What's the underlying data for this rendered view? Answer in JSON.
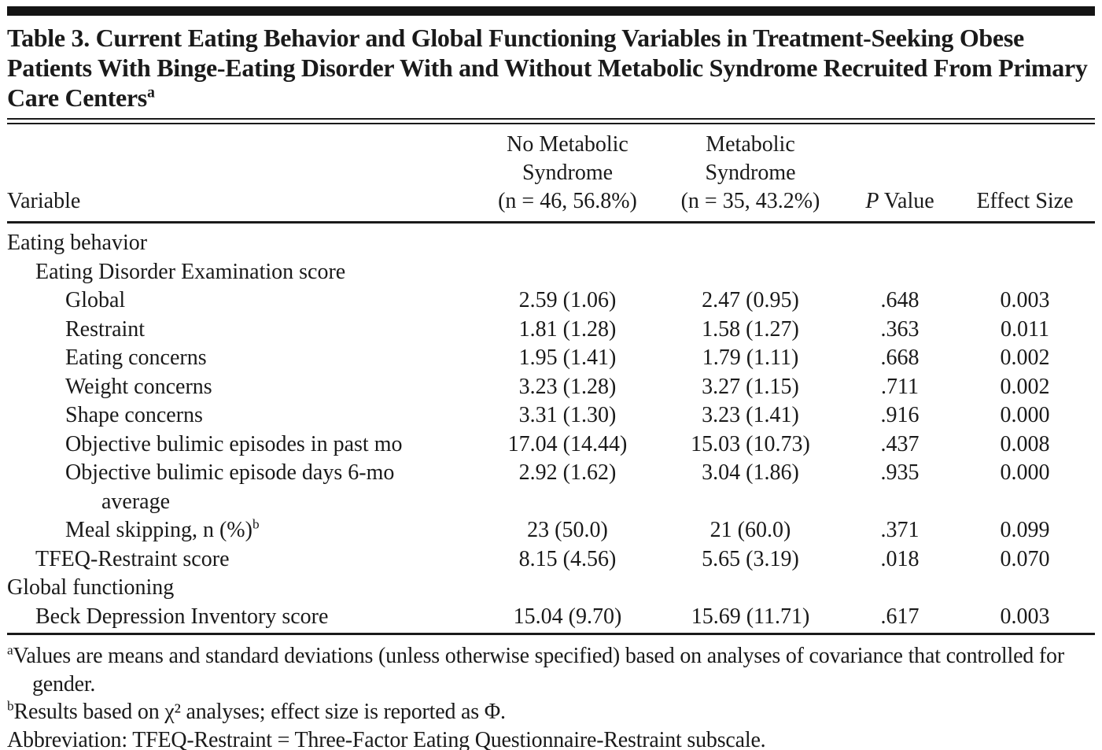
{
  "colors": {
    "background": "#ffffff",
    "text": "#1a1a1a",
    "rule": "#1a1a1a"
  },
  "title": {
    "text": "Table 3. Current Eating Behavior and Global Functioning Variables in Treatment-Seeking Obese Patients With Binge-Eating Disorder With and Without Metabolic Syndrome Recruited From Primary Care Centers",
    "superscript": "a"
  },
  "table": {
    "columns": {
      "variable": "Variable",
      "no_met": [
        "No Metabolic",
        "Syndrome",
        "(n = 46, 56.8%)"
      ],
      "met": [
        "Metabolic",
        "Syndrome",
        "(n = 35, 43.2%)"
      ],
      "p_italic": "P",
      "p_rest": "Value",
      "effect_size": "Effect Size"
    },
    "rows": [
      {
        "label": "Eating behavior",
        "indent": 0,
        "values": [
          "",
          "",
          "",
          ""
        ]
      },
      {
        "label": "Eating Disorder Examination score",
        "indent": 1,
        "values": [
          "",
          "",
          "",
          ""
        ]
      },
      {
        "label": "Global",
        "indent": 2,
        "values": [
          "2.59 (1.06)",
          "2.47 (0.95)",
          ".648",
          "0.003"
        ]
      },
      {
        "label": "Restraint",
        "indent": 2,
        "values": [
          "1.81 (1.28)",
          "1.58 (1.27)",
          ".363",
          "0.011"
        ]
      },
      {
        "label": "Eating concerns",
        "indent": 2,
        "values": [
          "1.95 (1.41)",
          "1.79 (1.11)",
          ".668",
          "0.002"
        ]
      },
      {
        "label": "Weight concerns",
        "indent": 2,
        "values": [
          "3.23 (1.28)",
          "3.27 (1.15)",
          ".711",
          "0.002"
        ]
      },
      {
        "label": "Shape concerns",
        "indent": 2,
        "values": [
          "3.31 (1.30)",
          "3.23 (1.41)",
          ".916",
          "0.000"
        ]
      },
      {
        "label": "Objective bulimic episodes in past mo",
        "indent": 2,
        "values": [
          "17.04 (14.44)",
          "15.03 (10.73)",
          ".437",
          "0.008"
        ]
      },
      {
        "label": "Objective bulimic episode days 6-mo",
        "label2": "average",
        "indent": 2,
        "values": [
          "2.92 (1.62)",
          "3.04 (1.86)",
          ".935",
          "0.000"
        ]
      },
      {
        "label": "Meal skipping, n (%)",
        "sup": "b",
        "indent": 2,
        "values": [
          "23 (50.0)",
          "21 (60.0)",
          ".371",
          "0.099"
        ]
      },
      {
        "label": "TFEQ-Restraint score",
        "indent": 1,
        "values": [
          "8.15 (4.56)",
          "5.65 (3.19)",
          ".018",
          "0.070"
        ]
      },
      {
        "label": "Global functioning",
        "indent": 0,
        "values": [
          "",
          "",
          "",
          ""
        ]
      },
      {
        "label": "Beck Depression Inventory score",
        "indent": 1,
        "values": [
          "15.04 (9.70)",
          "15.69 (11.71)",
          ".617",
          "0.003"
        ]
      }
    ]
  },
  "footnotes": [
    {
      "sup": "a",
      "text": "Values are means and standard deviations (unless otherwise specified) based on analyses of covariance that controlled for gender."
    },
    {
      "sup": "b",
      "text": "Results based on χ² analyses; effect size is reported as Φ."
    },
    {
      "sup": "",
      "text": "Abbreviation: TFEQ-Restraint = Three-Factor Eating Questionnaire-Restraint subscale."
    }
  ]
}
